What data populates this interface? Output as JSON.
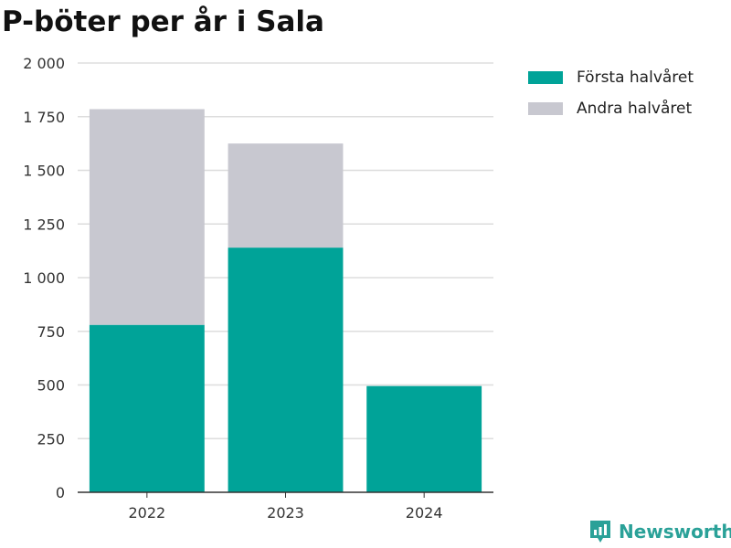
{
  "title": "P-böter per år i Sala",
  "brand": {
    "name": "Newsworthy",
    "icon": "newsworthy-logo-icon",
    "color": "#2aa198"
  },
  "colors": {
    "first_half": "#00a398",
    "second_half": "#c8c8d0",
    "grid": "#dddddd",
    "axis": "#333333"
  },
  "legend": {
    "items": [
      {
        "label": "Första halvåret",
        "color": "#00a398"
      },
      {
        "label": "Andra halvåret",
        "color": "#c8c8d0"
      }
    ],
    "placement": "top-right"
  },
  "chart_data": {
    "type": "bar",
    "stacked": true,
    "title": "P-böter per år i Sala",
    "categories": [
      "2022",
      "2023",
      "2024"
    ],
    "series": [
      {
        "name": "Första halvåret",
        "values": [
          780,
          1140,
          495
        ]
      },
      {
        "name": "Andra halvåret",
        "values": [
          1005,
          485,
          0
        ]
      }
    ],
    "ylim": [
      0,
      2000
    ],
    "yticks": [
      0,
      250,
      500,
      750,
      1000,
      1250,
      1500,
      1750,
      2000
    ],
    "ytick_labels": [
      "0",
      "250",
      "500",
      "750",
      "1 000",
      "1 250",
      "1 500",
      "1 750",
      "2 000"
    ],
    "grid": true,
    "xlabel": "",
    "ylabel": ""
  }
}
